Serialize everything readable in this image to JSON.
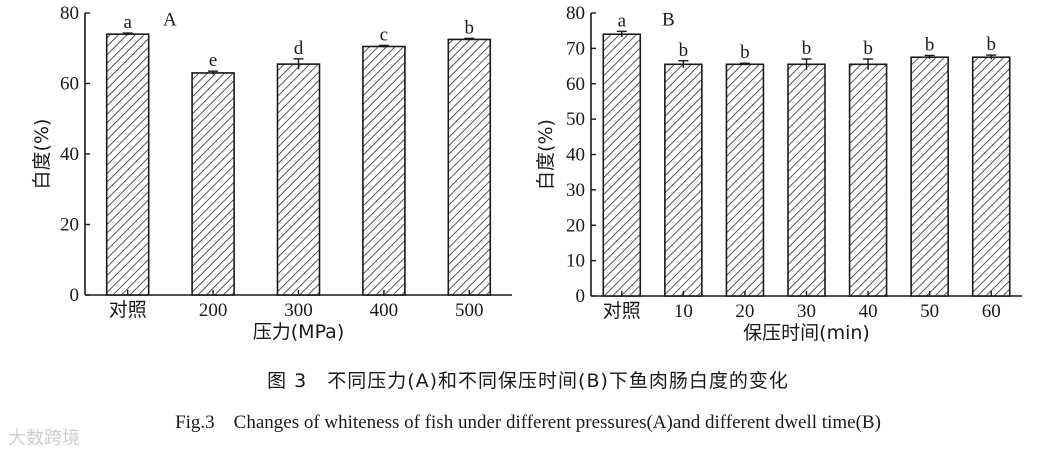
{
  "chart_data": [
    {
      "type": "bar",
      "panel_label": "A",
      "categories": [
        "对照",
        "200",
        "300",
        "400",
        "500"
      ],
      "values": [
        74,
        63,
        65.5,
        70.5,
        72.5
      ],
      "errors": [
        0.3,
        0.5,
        1.5,
        0.3,
        0.3
      ],
      "significance_letters": [
        "a",
        "e",
        "d",
        "c",
        "b"
      ],
      "xlabel": "压力(MPa)",
      "ylabel": "白度(%)",
      "ylim": [
        0,
        80
      ],
      "yticks": [
        0,
        20,
        40,
        60,
        80
      ],
      "grid": false
    },
    {
      "type": "bar",
      "panel_label": "B",
      "categories": [
        "对照",
        "10",
        "20",
        "30",
        "40",
        "50",
        "60"
      ],
      "values": [
        74,
        65.5,
        65.5,
        65.5,
        65.5,
        67.5,
        67.5
      ],
      "errors": [
        0.8,
        1.0,
        0.3,
        1.5,
        1.5,
        0.5,
        0.6
      ],
      "significance_letters": [
        "a",
        "b",
        "b",
        "b",
        "b",
        "b",
        "b"
      ],
      "xlabel": "保压时间(min)",
      "ylabel": "白度(%)",
      "ylim": [
        0,
        80
      ],
      "yticks": [
        0,
        10,
        20,
        30,
        40,
        50,
        60,
        70,
        80
      ],
      "grid": false
    }
  ],
  "caption": {
    "chinese": "图 3　不同压力(A)和不同保压时间(B)下鱼肉肠白度的变化",
    "english": "Fig.3　Changes of whiteness of fish under different pressures(A)and different dwell time(B)"
  },
  "watermark": "大数跨境",
  "colors": {
    "bar_fill": "#ffffff",
    "hatch": "#2a2a2a",
    "axis": "#1a1a1a"
  }
}
